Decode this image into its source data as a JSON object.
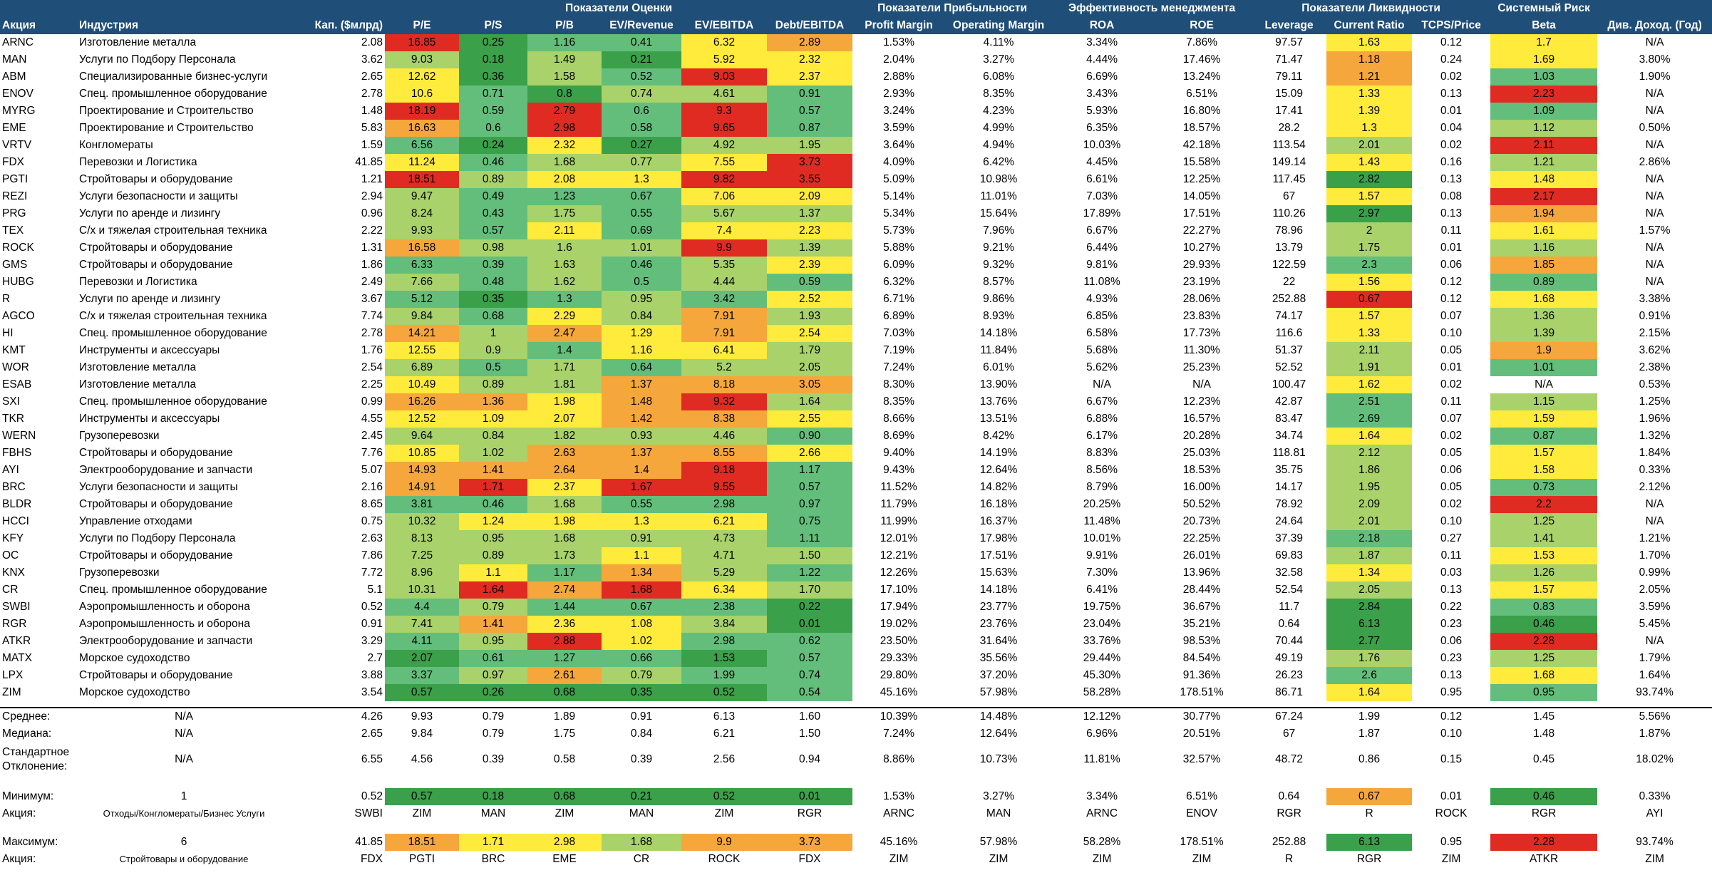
{
  "colors": {
    "header": "#1f4e79",
    "dark_green": "#3aa04a",
    "green": "#63be7b",
    "light_green": "#a9d26a",
    "yellow": "#ffeb3b",
    "orange": "#f5a73b",
    "red": "#e02b22"
  },
  "header": {
    "groups": [
      "Показатели Оценки",
      "Показатели Прибыльности",
      "Эффективность менеджмента",
      "Показатели Ликвидности",
      "Системный Риск"
    ],
    "columns": [
      "Акция",
      "Индустрия",
      "Кап. ($млрд)",
      "P/E",
      "P/S",
      "P/B",
      "EV/Revenue",
      "EV/EBITDA",
      "Debt/EBITDA",
      "Profit Margin",
      "Operating Margin",
      "ROA",
      "ROE",
      "Leverage",
      "Current Ratio",
      "TCPS/Price",
      "Beta",
      "Див. Доход. (Год)"
    ]
  },
  "rows": [
    [
      "ARNC",
      "Изготовление металла",
      "2.08",
      "16.85",
      "0.25",
      "1.16",
      "0.41",
      "6.32",
      "2.89",
      "1.53%",
      "4.11%",
      "3.34%",
      "7.86%",
      "97.57",
      "1.63",
      "0.12",
      "1.7",
      "N/A"
    ],
    [
      "MAN",
      "Услуги по Подбору Персонала",
      "3.62",
      "9.03",
      "0.18",
      "1.49",
      "0.21",
      "5.92",
      "2.32",
      "2.04%",
      "3.27%",
      "4.44%",
      "17.46%",
      "71.47",
      "1.18",
      "0.24",
      "1.69",
      "3.80%"
    ],
    [
      "ABM",
      "Специализированные бизнес-услуги",
      "2.65",
      "12.62",
      "0.36",
      "1.58",
      "0.52",
      "9.03",
      "2.37",
      "2.88%",
      "6.08%",
      "6.69%",
      "13.24%",
      "79.11",
      "1.21",
      "0.02",
      "1.03",
      "1.90%"
    ],
    [
      "ENOV",
      "Спец. промышленное оборудование",
      "2.78",
      "10.6",
      "0.71",
      "0.8",
      "0.74",
      "4.61",
      "0.91",
      "2.93%",
      "8.35%",
      "3.43%",
      "6.51%",
      "15.09",
      "1.33",
      "0.13",
      "2.23",
      "N/A"
    ],
    [
      "MYRG",
      "Проектирование и Строительство",
      "1.48",
      "18.19",
      "0.59",
      "2.79",
      "0.6",
      "9.3",
      "0.57",
      "3.24%",
      "4.23%",
      "5.93%",
      "16.80%",
      "17.41",
      "1.39",
      "0.01",
      "1.09",
      "N/A"
    ],
    [
      "EME",
      "Проектирование и Строительство",
      "5.83",
      "16.63",
      "0.6",
      "2.98",
      "0.58",
      "9.65",
      "0.87",
      "3.59%",
      "4.99%",
      "6.35%",
      "18.57%",
      "28.2",
      "1.3",
      "0.04",
      "1.12",
      "0.50%"
    ],
    [
      "VRTV",
      "Конгломераты",
      "1.59",
      "6.56",
      "0.24",
      "2.32",
      "0.27",
      "4.92",
      "1.95",
      "3.64%",
      "4.94%",
      "10.03%",
      "42.18%",
      "113.54",
      "2.01",
      "0.02",
      "2.11",
      "N/A"
    ],
    [
      "FDX",
      "Перевозки и Логистика",
      "41.85",
      "11.24",
      "0.46",
      "1.68",
      "0.77",
      "7.55",
      "3.73",
      "4.09%",
      "6.42%",
      "4.45%",
      "15.58%",
      "149.14",
      "1.43",
      "0.16",
      "1.21",
      "2.86%"
    ],
    [
      "PGTI",
      "Стройтовары и оборудование",
      "1.21",
      "18.51",
      "0.89",
      "2.08",
      "1.3",
      "9.82",
      "3.55",
      "5.09%",
      "10.98%",
      "6.61%",
      "12.25%",
      "117.45",
      "2.82",
      "0.13",
      "1.48",
      "N/A"
    ],
    [
      "REZI",
      "Услуги безопасности и защиты",
      "2.94",
      "9.47",
      "0.49",
      "1.23",
      "0.67",
      "7.06",
      "2.09",
      "5.14%",
      "11.01%",
      "7.03%",
      "14.05%",
      "67",
      "1.57",
      "0.08",
      "2.17",
      "N/A"
    ],
    [
      "PRG",
      "Услуги по аренде и лизингу",
      "0.96",
      "8.24",
      "0.43",
      "1.75",
      "0.55",
      "5.67",
      "1.37",
      "5.34%",
      "15.64%",
      "17.89%",
      "17.51%",
      "110.26",
      "2.97",
      "0.13",
      "1.94",
      "N/A"
    ],
    [
      "TEX",
      "С/х и тяжелая строительная техника",
      "2.22",
      "9.93",
      "0.57",
      "2.11",
      "0.69",
      "7.4",
      "2.23",
      "5.73%",
      "7.96%",
      "6.67%",
      "22.27%",
      "78.96",
      "2",
      "0.11",
      "1.61",
      "1.57%"
    ],
    [
      "ROCK",
      "Стройтовары и оборудование",
      "1.31",
      "16.58",
      "0.98",
      "1.6",
      "1.01",
      "9.9",
      "1.39",
      "5.88%",
      "9.21%",
      "6.44%",
      "10.27%",
      "13.79",
      "1.75",
      "0.01",
      "1.16",
      "N/A"
    ],
    [
      "GMS",
      "Стройтовары и оборудование",
      "1.86",
      "6.33",
      "0.39",
      "1.63",
      "0.46",
      "5.35",
      "2.39",
      "6.09%",
      "9.32%",
      "9.81%",
      "29.93%",
      "122.59",
      "2.3",
      "0.06",
      "1.85",
      "N/A"
    ],
    [
      "HUBG",
      "Перевозки и Логистика",
      "2.49",
      "7.66",
      "0.48",
      "1.62",
      "0.5",
      "4.44",
      "0.59",
      "6.32%",
      "8.57%",
      "11.08%",
      "23.19%",
      "22",
      "1.56",
      "0.12",
      "0.89",
      "N/A"
    ],
    [
      "R",
      "Услуги по аренде и лизингу",
      "3.67",
      "5.12",
      "0.35",
      "1.3",
      "0.95",
      "3.42",
      "2.52",
      "6.71%",
      "9.86%",
      "4.93%",
      "28.06%",
      "252.88",
      "0.67",
      "0.12",
      "1.68",
      "3.38%"
    ],
    [
      "AGCO",
      "С/х и тяжелая строительная техника",
      "7.74",
      "9.84",
      "0.68",
      "2.29",
      "0.84",
      "7.91",
      "1.93",
      "6.89%",
      "8.93%",
      "6.85%",
      "23.83%",
      "74.17",
      "1.57",
      "0.07",
      "1.36",
      "0.91%"
    ],
    [
      "HI",
      "Спец. промышленное оборудование",
      "2.78",
      "14.21",
      "1",
      "2.47",
      "1.29",
      "7.91",
      "2.54",
      "7.03%",
      "14.18%",
      "6.58%",
      "17.73%",
      "116.6",
      "1.33",
      "0.10",
      "1.39",
      "2.15%"
    ],
    [
      "KMT",
      "Инструменты и аксессуары",
      "1.76",
      "12.55",
      "0.9",
      "1.4",
      "1.16",
      "6.41",
      "1.79",
      "7.19%",
      "11.84%",
      "5.68%",
      "11.30%",
      "51.37",
      "2.11",
      "0.05",
      "1.9",
      "3.62%"
    ],
    [
      "WOR",
      "Изготовление металла",
      "2.54",
      "6.89",
      "0.5",
      "1.71",
      "0.64",
      "5.2",
      "2.05",
      "7.24%",
      "6.01%",
      "5.62%",
      "25.23%",
      "52.52",
      "1.91",
      "0.01",
      "1.01",
      "2.38%"
    ],
    [
      "ESAB",
      "Изготовление металла",
      "2.25",
      "10.49",
      "0.89",
      "1.81",
      "1.37",
      "8.18",
      "3.05",
      "8.30%",
      "13.90%",
      "N/A",
      "N/A",
      "100.47",
      "1.62",
      "0.02",
      "N/A",
      "0.53%"
    ],
    [
      "SXI",
      "Спец. промышленное оборудование",
      "0.99",
      "16.26",
      "1.36",
      "1.98",
      "1.48",
      "9.32",
      "1.64",
      "8.35%",
      "13.76%",
      "6.67%",
      "12.23%",
      "42.87",
      "2.51",
      "0.11",
      "1.15",
      "1.25%"
    ],
    [
      "TKR",
      "Инструменты и аксессуары",
      "4.55",
      "12.52",
      "1.09",
      "2.07",
      "1.42",
      "8.38",
      "2.55",
      "8.66%",
      "13.51%",
      "6.88%",
      "16.57%",
      "83.47",
      "2.69",
      "0.07",
      "1.59",
      "1.96%"
    ],
    [
      "WERN",
      "Грузоперевозки",
      "2.45",
      "9.64",
      "0.84",
      "1.82",
      "0.93",
      "4.46",
      "0.90",
      "8.69%",
      "8.42%",
      "6.17%",
      "20.28%",
      "34.74",
      "1.64",
      "0.02",
      "0.87",
      "1.32%"
    ],
    [
      "FBHS",
      "Стройтовары и оборудование",
      "7.76",
      "10.85",
      "1.02",
      "2.63",
      "1.37",
      "8.55",
      "2.66",
      "9.40%",
      "14.19%",
      "8.83%",
      "25.03%",
      "118.81",
      "2.12",
      "0.05",
      "1.57",
      "1.84%"
    ],
    [
      "AYI",
      "Электрооборудование и запчасти",
      "5.07",
      "14.93",
      "1.41",
      "2.64",
      "1.4",
      "9.18",
      "1.17",
      "9.43%",
      "12.64%",
      "8.56%",
      "18.53%",
      "35.75",
      "1.86",
      "0.06",
      "1.58",
      "0.33%"
    ],
    [
      "BRC",
      "Услуги безопасности и защиты",
      "2.16",
      "14.91",
      "1.71",
      "2.37",
      "1.67",
      "9.55",
      "0.57",
      "11.52%",
      "14.82%",
      "8.79%",
      "16.00%",
      "14.17",
      "1.95",
      "0.05",
      "0.73",
      "2.12%"
    ],
    [
      "BLDR",
      "Стройтовары и оборудование",
      "8.65",
      "3.81",
      "0.46",
      "1.68",
      "0.55",
      "2.98",
      "0.97",
      "11.79%",
      "16.18%",
      "20.25%",
      "50.52%",
      "78.92",
      "2.09",
      "0.02",
      "2.2",
      "N/A"
    ],
    [
      "HCCI",
      "Управление отходами",
      "0.75",
      "10.32",
      "1.24",
      "1.98",
      "1.3",
      "6.21",
      "0.75",
      "11.99%",
      "16.37%",
      "11.48%",
      "20.73%",
      "24.64",
      "2.01",
      "0.10",
      "1.25",
      "N/A"
    ],
    [
      "KFY",
      "Услуги по Подбору Персонала",
      "2.63",
      "8.13",
      "0.95",
      "1.68",
      "0.91",
      "4.73",
      "1.11",
      "12.01%",
      "17.98%",
      "10.01%",
      "22.25%",
      "37.39",
      "2.18",
      "0.27",
      "1.41",
      "1.21%"
    ],
    [
      "OC",
      "Стройтовары и оборудование",
      "7.86",
      "7.25",
      "0.89",
      "1.73",
      "1.1",
      "4.71",
      "1.50",
      "12.21%",
      "17.51%",
      "9.91%",
      "26.01%",
      "69.83",
      "1.87",
      "0.11",
      "1.53",
      "1.70%"
    ],
    [
      "KNX",
      "Грузоперевозки",
      "7.72",
      "8.96",
      "1.1",
      "1.17",
      "1.34",
      "5.29",
      "1.22",
      "12.26%",
      "15.63%",
      "7.30%",
      "13.96%",
      "32.58",
      "1.34",
      "0.03",
      "1.26",
      "0.99%"
    ],
    [
      "CR",
      "Спец. промышленное оборудование",
      "5.1",
      "10.31",
      "1.64",
      "2.74",
      "1.68",
      "6.34",
      "1.70",
      "17.10%",
      "14.18%",
      "6.41%",
      "28.44%",
      "52.54",
      "2.05",
      "0.13",
      "1.57",
      "2.05%"
    ],
    [
      "SWBI",
      "Аэропромышленность и оборона",
      "0.52",
      "4.4",
      "0.79",
      "1.44",
      "0.67",
      "2.38",
      "0.22",
      "17.94%",
      "23.77%",
      "19.75%",
      "36.67%",
      "11.7",
      "2.84",
      "0.22",
      "0.83",
      "3.59%"
    ],
    [
      "RGR",
      "Аэропромышленность и оборона",
      "0.91",
      "7.41",
      "1.41",
      "2.36",
      "1.08",
      "3.84",
      "0.01",
      "19.02%",
      "23.76%",
      "23.04%",
      "35.21%",
      "0.64",
      "6.13",
      "0.23",
      "0.46",
      "5.45%"
    ],
    [
      "ATKR",
      "Электрооборудование и запчасти",
      "3.29",
      "4.11",
      "0.95",
      "2.88",
      "1.02",
      "2.98",
      "0.62",
      "23.50%",
      "31.64%",
      "33.76%",
      "98.53%",
      "70.44",
      "2.77",
      "0.06",
      "2.28",
      "N/A"
    ],
    [
      "MATX",
      "Морское судоходство",
      "2.7",
      "2.07",
      "0.61",
      "1.27",
      "0.66",
      "1.53",
      "0.57",
      "29.33%",
      "35.56%",
      "29.44%",
      "84.54%",
      "49.19",
      "1.76",
      "0.23",
      "1.25",
      "1.79%"
    ],
    [
      "LPX",
      "Стройтовары и оборудование",
      "3.88",
      "3.37",
      "0.97",
      "2.61",
      "0.79",
      "1.99",
      "0.74",
      "29.80%",
      "37.20%",
      "45.30%",
      "91.36%",
      "26.23",
      "2.6",
      "0.13",
      "1.68",
      "1.64%"
    ],
    [
      "ZIM",
      "Морское судоходство",
      "3.54",
      "0.57",
      "0.26",
      "0.68",
      "0.35",
      "0.52",
      "0.54",
      "45.16%",
      "57.98%",
      "58.28%",
      "178.51%",
      "86.71",
      "1.64",
      "0.95",
      "0.95",
      "93.74%"
    ]
  ],
  "stats": [
    {
      "label": "Среднее:",
      "industry": "N/A",
      "values": [
        "4.26",
        "9.93",
        "0.79",
        "1.89",
        "0.91",
        "6.13",
        "1.60",
        "10.39%",
        "14.48%",
        "12.12%",
        "30.77%",
        "67.24",
        "1.99",
        "0.12",
        "1.45",
        "5.56%"
      ]
    },
    {
      "label": "Медиана:",
      "industry": "N/A",
      "values": [
        "2.65",
        "9.84",
        "0.79",
        "1.75",
        "0.84",
        "6.21",
        "1.50",
        "7.24%",
        "12.64%",
        "6.96%",
        "20.51%",
        "67",
        "1.87",
        "0.10",
        "1.48",
        "1.87%"
      ]
    },
    {
      "label": "Стандартное Отклонение:",
      "industry": "N/A",
      "values": [
        "6.55",
        "4.56",
        "0.39",
        "0.58",
        "0.39",
        "2.56",
        "0.94",
        "8.86%",
        "10.73%",
        "11.81%",
        "32.57%",
        "48.72",
        "0.86",
        "0.15",
        "0.45",
        "18.02%"
      ]
    }
  ],
  "minimum": {
    "label": "Минимум:",
    "industry": "1",
    "values": [
      "0.52",
      "0.57",
      "0.18",
      "0.68",
      "0.21",
      "0.52",
      "0.01",
      "1.53%",
      "3.27%",
      "3.34%",
      "6.51%",
      "0.64",
      "0.67",
      "0.01",
      "0.46",
      "0.33%"
    ],
    "ticker_label": "Акция:",
    "ticker_industry": "Отходы/Конгломераты/Бизнес Услуги",
    "tickers": [
      "SWBI",
      "ZIM",
      "MAN",
      "ZIM",
      "MAN",
      "ZIM",
      "RGR",
      "ARNC",
      "MAN",
      "ARNC",
      "ENOV",
      "RGR",
      "R",
      "ROCK",
      "RGR",
      "AYI"
    ]
  },
  "maximum": {
    "label": "Максимум:",
    "industry": "6",
    "values": [
      "41.85",
      "18.51",
      "1.71",
      "2.98",
      "1.68",
      "9.9",
      "3.73",
      "45.16%",
      "57.98%",
      "58.28%",
      "178.51%",
      "252.88",
      "6.13",
      "0.95",
      "2.28",
      "93.74%"
    ],
    "ticker_label": "Акция:",
    "ticker_industry": "Стройтовары и оборудование",
    "tickers": [
      "FDX",
      "PGTI",
      "BRC",
      "EME",
      "CR",
      "ROCK",
      "FDX",
      "ZIM",
      "ZIM",
      "ZIM",
      "ZIM",
      "R",
      "RGR",
      "ZIM",
      "ATKR",
      "ZIM"
    ]
  }
}
